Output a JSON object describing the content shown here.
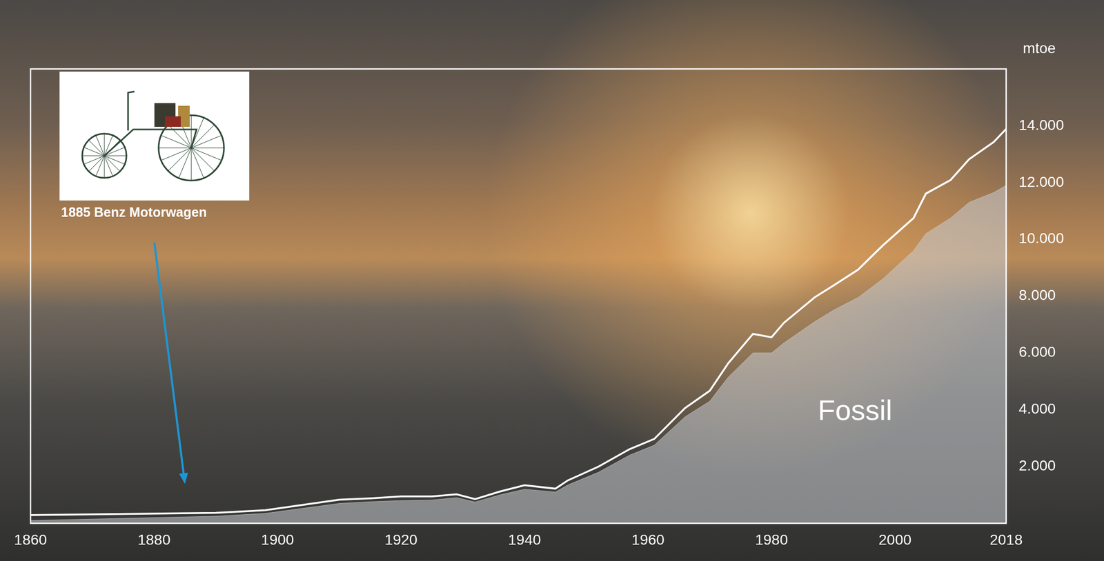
{
  "chart_data": {
    "type": "line",
    "ylabel": "mtoe",
    "x": [
      1860,
      1890,
      1898,
      1910,
      1915,
      1920,
      1925,
      1929,
      1932,
      1936,
      1940,
      1945,
      1947,
      1952,
      1957,
      1961,
      1966,
      1970,
      1973,
      1977,
      1980,
      1982,
      1987,
      1990,
      1994,
      1998,
      2003,
      2005,
      2009,
      2012,
      2016,
      2018
    ],
    "series": [
      {
        "type": "line",
        "color": "#ffffff",
        "values": [
          290,
          370,
          460,
          830,
          880,
          950,
          950,
          1020,
          850,
          1120,
          1340,
          1220,
          1510,
          2000,
          2610,
          2970,
          4060,
          4670,
          5640,
          6670,
          6550,
          7060,
          7960,
          8370,
          8930,
          9780,
          10750,
          11610,
          12090,
          12820,
          13430,
          13890
        ]
      },
      {
        "name": "Fossil",
        "type": "area",
        "color": "#c8ccd2",
        "values": [
          100,
          250,
          350,
          700,
          760,
          800,
          820,
          900,
          750,
          1000,
          1200,
          1100,
          1350,
          1800,
          2400,
          2750,
          3750,
          4300,
          5150,
          6000,
          6000,
          6350,
          7100,
          7500,
          7950,
          8600,
          9600,
          10200,
          10750,
          11300,
          11650,
          11900
        ]
      }
    ],
    "xlim": [
      1860,
      2018
    ],
    "xticks": [
      1860,
      1880,
      1900,
      1920,
      1940,
      1960,
      1980,
      2000,
      2018
    ],
    "ylim": [
      0,
      16000
    ],
    "yticks": [
      {
        "value": 2000,
        "label": "2.000"
      },
      {
        "value": 4000,
        "label": "4.000"
      },
      {
        "value": 6000,
        "label": "6.000"
      },
      {
        "value": 8000,
        "label": "8.000"
      },
      {
        "value": 10000,
        "label": "10.000"
      },
      {
        "value": 12000,
        "label": "12.000"
      },
      {
        "value": 14000,
        "label": "14.000"
      }
    ],
    "grid": false,
    "annotations": [
      {
        "text": "1885 Benz Motorwagen",
        "x": 1885
      }
    ]
  }
}
